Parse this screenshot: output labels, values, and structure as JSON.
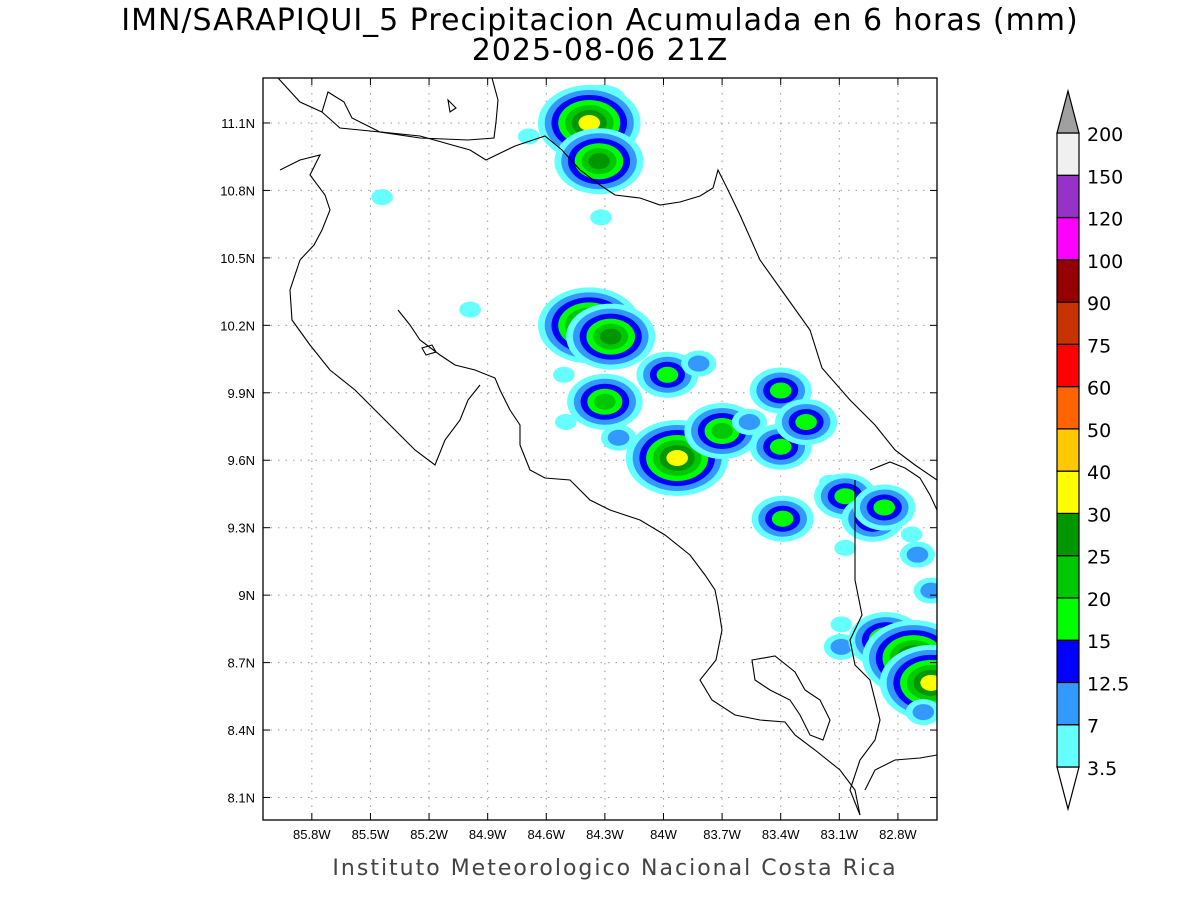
{
  "title_line1": "IMN/SARAPIQUI_5 Precipitacion Acumulada en 6 horas (mm)",
  "title_line2": "2025-08-06 21Z",
  "footer": "Instituto Meteorologico Nacional Costa Rica",
  "map": {
    "lon_range": [
      -86.05,
      -82.6
    ],
    "lat_range": [
      8.0,
      11.3
    ],
    "lon_ticks": [
      -85.8,
      -85.5,
      -85.2,
      -84.9,
      -84.6,
      -84.3,
      -84.0,
      -83.7,
      -83.4,
      -83.1,
      -82.8
    ],
    "lat_ticks": [
      8.1,
      8.4,
      8.7,
      9.0,
      9.3,
      9.6,
      9.9,
      10.2,
      10.5,
      10.8,
      11.1
    ],
    "lon_labels": [
      "85.8W",
      "85.5W",
      "85.2W",
      "84.9W",
      "84.6W",
      "84.3W",
      "84W",
      "83.7W",
      "83.4W",
      "83.1W",
      "82.8W"
    ],
    "lat_labels": [
      "8.1N",
      "8.4N",
      "8.7N",
      "9N",
      "9.3N",
      "9.6N",
      "9.9N",
      "10.2N",
      "10.5N",
      "10.8N",
      "11.1N"
    ],
    "grid": true,
    "coastline_color": "#000000"
  },
  "legend": {
    "levels": [
      "3.5",
      "7",
      "12.5",
      "15",
      "20",
      "25",
      "30",
      "40",
      "50",
      "60",
      "75",
      "90",
      "100",
      "120",
      "150",
      "200"
    ],
    "colors": [
      "#ffffff",
      "#66ffff",
      "#3399ff",
      "#0000ff",
      "#00ff00",
      "#00c800",
      "#009600",
      "#ffff00",
      "#ffc800",
      "#ff6400",
      "#ff0000",
      "#c83200",
      "#960000",
      "#ff00ff",
      "#9632c8",
      "#f0f0f0",
      "#a0a0a0"
    ]
  },
  "precip_cells": [
    {
      "lon": -84.31,
      "lat": 11.19,
      "level": 2
    },
    {
      "lon": -84.38,
      "lat": 11.1,
      "level": 6
    },
    {
      "lon": -84.33,
      "lat": 10.93,
      "level": 5
    },
    {
      "lon": -84.32,
      "lat": 10.68,
      "level": 0
    },
    {
      "lon": -84.69,
      "lat": 11.04,
      "level": 0
    },
    {
      "lon": -85.44,
      "lat": 10.77,
      "level": 0
    },
    {
      "lon": -84.99,
      "lat": 10.27,
      "level": 0
    },
    {
      "lon": -84.38,
      "lat": 10.2,
      "level": 6
    },
    {
      "lon": -84.27,
      "lat": 10.15,
      "level": 5
    },
    {
      "lon": -83.98,
      "lat": 9.98,
      "level": 3
    },
    {
      "lon": -83.82,
      "lat": 10.03,
      "level": 1
    },
    {
      "lon": -84.51,
      "lat": 9.98,
      "level": 0
    },
    {
      "lon": -84.3,
      "lat": 9.86,
      "level": 4
    },
    {
      "lon": -84.5,
      "lat": 9.77,
      "level": 0
    },
    {
      "lon": -84.23,
      "lat": 9.7,
      "level": 1
    },
    {
      "lon": -83.93,
      "lat": 9.61,
      "level": 6
    },
    {
      "lon": -83.7,
      "lat": 9.73,
      "level": 4
    },
    {
      "lon": -83.56,
      "lat": 9.77,
      "level": 1
    },
    {
      "lon": -83.4,
      "lat": 9.91,
      "level": 3
    },
    {
      "lon": -83.4,
      "lat": 9.66,
      "level": 3
    },
    {
      "lon": -83.27,
      "lat": 9.77,
      "level": 3
    },
    {
      "lon": -83.39,
      "lat": 9.34,
      "level": 3
    },
    {
      "lon": -83.15,
      "lat": 9.5,
      "level": 0
    },
    {
      "lon": -83.07,
      "lat": 9.44,
      "level": 3
    },
    {
      "lon": -82.93,
      "lat": 9.34,
      "level": 3
    },
    {
      "lon": -82.87,
      "lat": 9.39,
      "level": 3
    },
    {
      "lon": -83.07,
      "lat": 9.21,
      "level": 0
    },
    {
      "lon": -82.73,
      "lat": 9.27,
      "level": 0
    },
    {
      "lon": -82.7,
      "lat": 9.18,
      "level": 1
    },
    {
      "lon": -82.63,
      "lat": 9.02,
      "level": 1
    },
    {
      "lon": -83.09,
      "lat": 8.87,
      "level": 0
    },
    {
      "lon": -83.09,
      "lat": 8.77,
      "level": 1
    },
    {
      "lon": -82.86,
      "lat": 8.8,
      "level": 4
    },
    {
      "lon": -82.72,
      "lat": 8.72,
      "level": 6
    },
    {
      "lon": -82.63,
      "lat": 8.61,
      "level": 6
    },
    {
      "lon": -82.67,
      "lat": 8.48,
      "level": 1
    }
  ]
}
